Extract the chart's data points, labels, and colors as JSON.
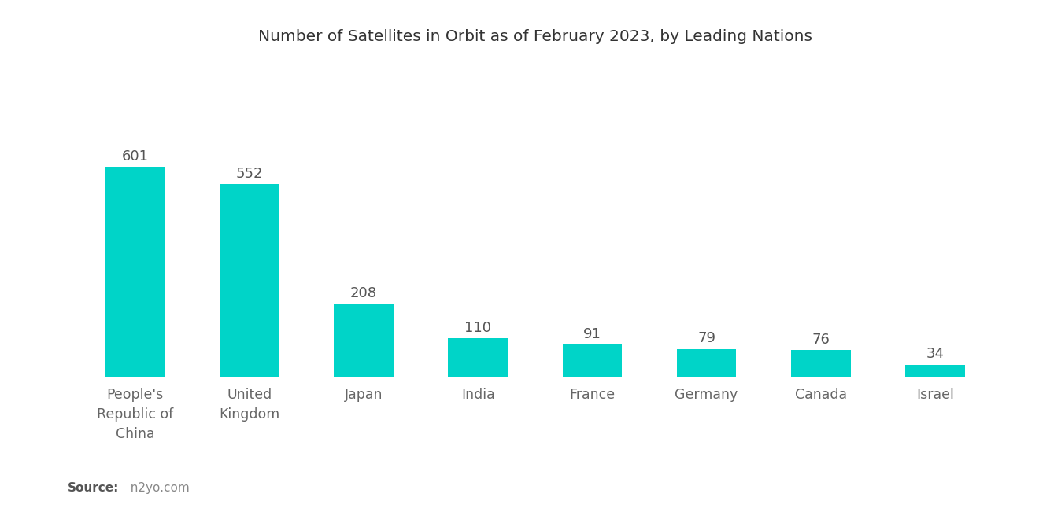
{
  "title": "Number of Satellites in Orbit as of February 2023, by Leading Nations",
  "categories": [
    "People's\nRepublic of\nChina",
    "United\nKingdom",
    "Japan",
    "India",
    "France",
    "Germany",
    "Canada",
    "Israel"
  ],
  "values": [
    601,
    552,
    208,
    110,
    91,
    79,
    76,
    34
  ],
  "bar_color": "#00D4C8",
  "background_color": "#ffffff",
  "title_fontsize": 14.5,
  "label_fontsize": 12.5,
  "value_fontsize": 13,
  "source_bold": "Source:",
  "source_normal": "  n2yo.com",
  "ylim": [
    0,
    900
  ],
  "bar_width": 0.52
}
